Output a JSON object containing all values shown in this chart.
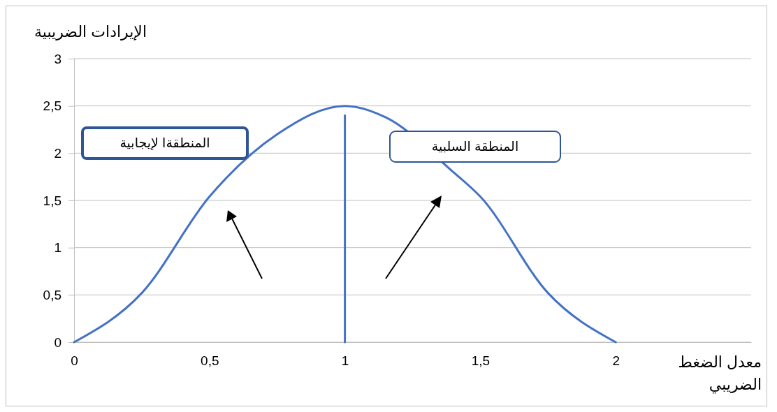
{
  "chart_data": {
    "type": "line",
    "xlabel": "معدل الضغط الضريبي",
    "ylabel": "الإيرادات الضريبية",
    "xlim": [
      0,
      2.5
    ],
    "xticks": [
      0,
      {
        "value": 0.5,
        "label": "0,5"
      },
      1,
      {
        "value": 1.5,
        "label": "1,5"
      },
      2
    ],
    "ylim": [
      0,
      3
    ],
    "yticks": [
      0,
      {
        "value": 0.5,
        "label": "0,5"
      },
      1,
      {
        "value": 1.5,
        "label": "1,5"
      },
      2,
      {
        "value": 2.5,
        "label": "2,5"
      },
      3
    ],
    "grid": "y",
    "series": [
      {
        "color": "#4472c4",
        "x": [
          0,
          0.25,
          0.5,
          0.75,
          1,
          1.15,
          1.4,
          1.5,
          1.75,
          2
        ],
        "values": [
          0,
          0.52,
          1.54,
          2.2,
          2.5,
          2.38,
          1.8,
          1.54,
          0.52,
          0
        ]
      },
      {
        "color": "#4472c4",
        "x": [
          1,
          1
        ],
        "values": [
          0,
          2.4
        ]
      }
    ],
    "annotations": [
      "المنطقةا لإيجابية",
      "المنطقة السلبية"
    ]
  }
}
